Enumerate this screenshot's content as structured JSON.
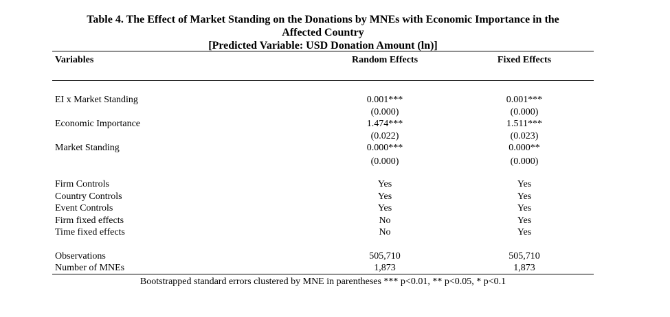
{
  "table": {
    "title_line1": "Table 4. The Effect of Market Standing on the Donations by MNEs with Economic Importance in the",
    "title_line2": "Affected Country",
    "title_line3": "[Predicted Variable: USD Donation Amount (ln)]",
    "headers": [
      "Variables",
      "Random Effects",
      "Fixed Effects"
    ],
    "coef_rows": [
      {
        "label": "EI x Market Standing",
        "re": "0.001***",
        "re_se": "(0.000)",
        "fe": "0.001***",
        "fe_se": "(0.000)"
      },
      {
        "label": "Economic Importance",
        "re": "1.474***",
        "re_se": "(0.022)",
        "fe": "1.511***",
        "fe_se": "(0.023)"
      },
      {
        "label": "Market Standing",
        "re": "0.000***",
        "re_se": "(0.000)",
        "fe": "0.000**",
        "fe_se": "(0.000)"
      }
    ],
    "control_rows": [
      {
        "label": "Firm Controls",
        "re": "Yes",
        "fe": "Yes"
      },
      {
        "label": "Country Controls",
        "re": "Yes",
        "fe": "Yes"
      },
      {
        "label": "Event Controls",
        "re": "Yes",
        "fe": "Yes"
      },
      {
        "label": "Firm fixed effects",
        "re": "No",
        "fe": "Yes"
      },
      {
        "label": "Time fixed effects",
        "re": "No",
        "fe": "Yes"
      }
    ],
    "stat_rows": [
      {
        "label": "Observations",
        "re": "505,710",
        "fe": "505,710"
      },
      {
        "label": "Number of MNEs",
        "re": "1,873",
        "fe": "1,873"
      }
    ],
    "note": "Bootstrapped standard errors clustered by MNE in parentheses *** p<0.01, ** p<0.05, * p<0.1"
  }
}
